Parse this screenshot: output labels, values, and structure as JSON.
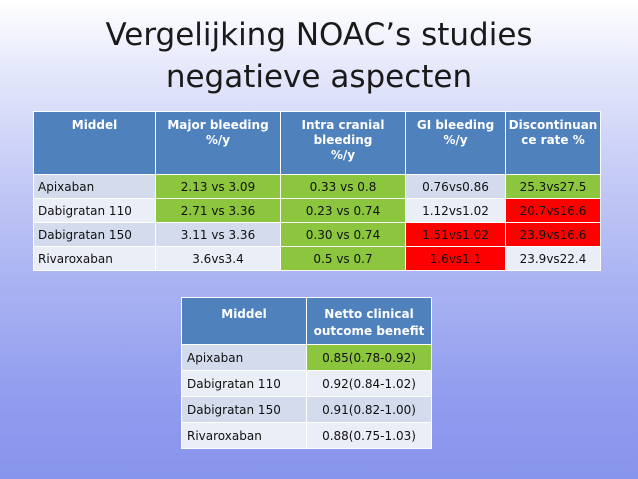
{
  "slide": {
    "title_line1": "Vergelijking NOAC’s studies",
    "title_line2": "negatieve aspecten"
  },
  "table1": {
    "headers": [
      "Middel",
      "Major bleeding %/y",
      "Intra cranial bleeding %/y",
      "GI bleeding %/y",
      "Discontinuan ce rate %"
    ],
    "header_lines": [
      [
        "Middel"
      ],
      [
        "Major bleeding",
        "%/y"
      ],
      [
        "Intra cranial",
        "bleeding",
        "%/y"
      ],
      [
        "GI bleeding",
        "%/y"
      ],
      [
        "Discontinuan",
        "ce rate %"
      ]
    ],
    "rows": [
      [
        "Apixaban",
        "2.13 vs 3.09",
        "0.33 vs 0.8",
        "0.76vs0.86",
        "25.3vs27.5"
      ],
      [
        "Dabigratan 110",
        "2.71 vs 3.36",
        "0.23 vs 0.74",
        "1.12vs1.02",
        "20.7vs16.6"
      ],
      [
        "Dabigratan 150",
        "3.11 vs 3.36",
        "0.30 vs 0.74",
        "1.51vs1.02",
        "23.9vs16.6"
      ],
      [
        "Rivaroxaban",
        "3.6vs3.4",
        "0.5 vs 0.7",
        "1.6vs1.1",
        "23.9vs22.4"
      ]
    ]
  },
  "table2": {
    "header_lines": [
      [
        "Middel"
      ],
      [
        "Netto clinical",
        "outcome benefit"
      ]
    ],
    "rows": [
      [
        "Apixaban",
        "0.85(0.78-0.92)"
      ],
      [
        "Dabigratan 110",
        "0.92(0.84-1.02)"
      ],
      [
        "Dabigratan 150",
        "0.91(0.82-1.00)"
      ],
      [
        "Rivaroxaban",
        "0.88(0.75-1.03)"
      ]
    ]
  },
  "colors": {
    "header_blue": "#4f81bd",
    "highlight_green": "#8cc63f",
    "highlight_red": "#ff0000"
  }
}
